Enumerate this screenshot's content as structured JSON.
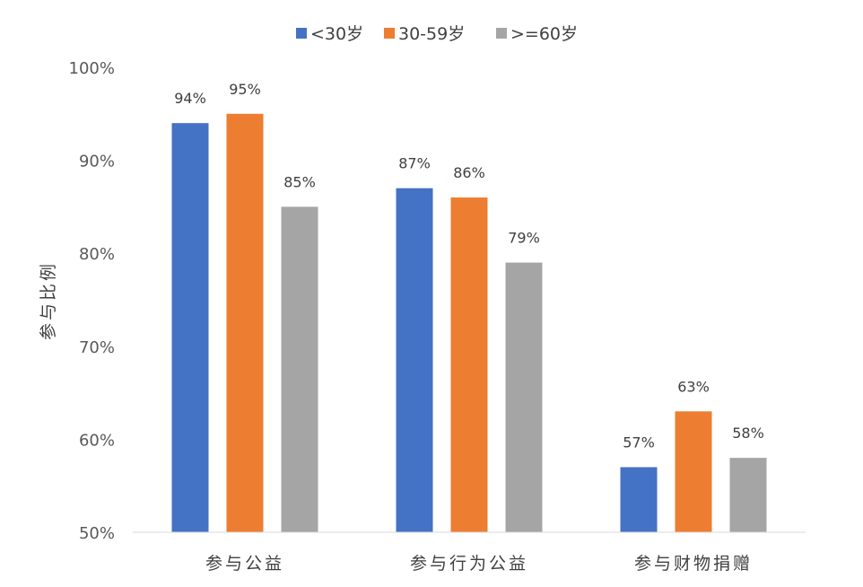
{
  "chart_data": {
    "type": "bar",
    "title": "",
    "xlabel": "",
    "ylabel": "参与比例",
    "ylim": [
      50,
      100
    ],
    "yticks": [
      50,
      60,
      70,
      80,
      90,
      100
    ],
    "ytick_labels": [
      "50%",
      "60%",
      "70%",
      "80%",
      "90%",
      "100%"
    ],
    "grid": false,
    "legend_position": "top",
    "categories": [
      "参与公益",
      "参与行为公益",
      "参与财物捐赠"
    ],
    "series": [
      {
        "name": "<30岁",
        "color": "#4472C4",
        "values": [
          94,
          87,
          57
        ],
        "labels": [
          "94%",
          "87%",
          "57%"
        ]
      },
      {
        "name": "30-59岁",
        "color": "#ED7D31",
        "values": [
          95,
          86,
          63
        ],
        "labels": [
          "95%",
          "86%",
          "63%"
        ]
      },
      {
        "name": ">=60岁",
        "color": "#A5A5A5",
        "values": [
          85,
          79,
          58
        ],
        "labels": [
          "85%",
          "79%",
          "58%"
        ]
      }
    ]
  }
}
